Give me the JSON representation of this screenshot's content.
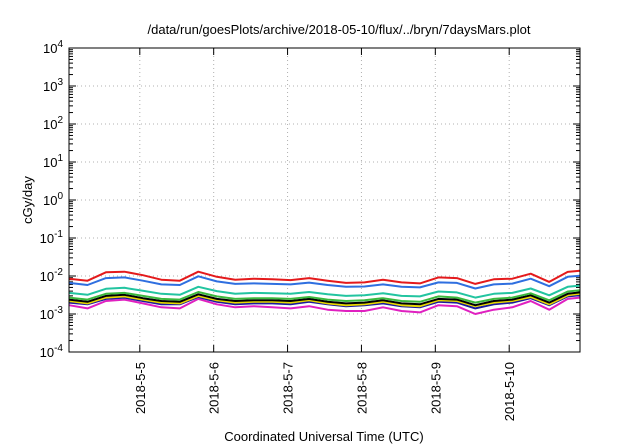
{
  "chart_data": {
    "type": "line",
    "title": "/data/run/goesPlots/archive/2018-05-10/flux/../bryn/7daysMars.plot",
    "xlabel": "Coordinated Universal Time (UTC)",
    "ylabel": "cGy/day",
    "yscale": "log",
    "ylim": [
      0.0001,
      10000
    ],
    "xlim": [
      "2018-05-04T01:00",
      "2018-05-10T23:00"
    ],
    "grid": true,
    "x_tick_labels": [
      "2018-5-5",
      "2018-5-6",
      "2018-5-7",
      "2018-5-8",
      "2018-5-9",
      "2018-5-10"
    ],
    "y_ticks": [
      {
        "base": "10",
        "exp": "4"
      },
      {
        "base": "10",
        "exp": "3"
      },
      {
        "base": "10",
        "exp": "2"
      },
      {
        "base": "10",
        "exp": "1"
      },
      {
        "base": "10",
        "exp": "0"
      },
      {
        "base": "10",
        "exp": "-1"
      },
      {
        "base": "10",
        "exp": "-2"
      },
      {
        "base": "10",
        "exp": "-3"
      },
      {
        "base": "10",
        "exp": "-4"
      }
    ],
    "x": [
      "2018-05-04T01:00",
      "2018-05-04T07:00",
      "2018-05-04T13:00",
      "2018-05-04T19:00",
      "2018-05-05T01:00",
      "2018-05-05T07:00",
      "2018-05-05T13:00",
      "2018-05-05T19:00",
      "2018-05-06T01:00",
      "2018-05-06T07:00",
      "2018-05-06T13:00",
      "2018-05-06T19:00",
      "2018-05-07T01:00",
      "2018-05-07T07:00",
      "2018-05-07T13:00",
      "2018-05-07T19:00",
      "2018-05-08T01:00",
      "2018-05-08T07:00",
      "2018-05-08T13:00",
      "2018-05-08T19:00",
      "2018-05-09T01:00",
      "2018-05-09T07:00",
      "2018-05-09T13:00",
      "2018-05-09T19:00",
      "2018-05-10T01:00",
      "2018-05-10T07:00",
      "2018-05-10T13:00",
      "2018-05-10T19:00",
      "2018-05-10T23:00"
    ],
    "series": [
      {
        "color": "#e41a1c",
        "values": [
          0.0085,
          0.0075,
          0.0125,
          0.013,
          0.0105,
          0.008,
          0.0075,
          0.013,
          0.0095,
          0.008,
          0.0085,
          0.0082,
          0.0078,
          0.0088,
          0.0075,
          0.0066,
          0.0068,
          0.008,
          0.0068,
          0.0064,
          0.0092,
          0.0088,
          0.0062,
          0.0082,
          0.0085,
          0.0115,
          0.007,
          0.0128,
          0.0138
        ]
      },
      {
        "color": "#2f6fe0",
        "values": [
          0.0066,
          0.0058,
          0.0088,
          0.0092,
          0.0075,
          0.006,
          0.0058,
          0.0098,
          0.0072,
          0.0062,
          0.0064,
          0.0062,
          0.006,
          0.0067,
          0.0058,
          0.0052,
          0.0053,
          0.006,
          0.0052,
          0.005,
          0.0068,
          0.0066,
          0.0047,
          0.006,
          0.0063,
          0.0085,
          0.0054,
          0.0095,
          0.0102
        ]
      },
      {
        "color": "#22c4a0",
        "values": [
          0.0036,
          0.0032,
          0.0046,
          0.0049,
          0.0041,
          0.0034,
          0.0032,
          0.0052,
          0.004,
          0.0034,
          0.0036,
          0.0035,
          0.0034,
          0.0038,
          0.0033,
          0.003,
          0.0031,
          0.0035,
          0.003,
          0.0029,
          0.0039,
          0.0037,
          0.0027,
          0.0034,
          0.0036,
          0.0047,
          0.0031,
          0.0052,
          0.0056
        ]
      },
      {
        "color": "#3cb83c",
        "values": [
          0.0027,
          0.0024,
          0.0034,
          0.0036,
          0.003,
          0.0025,
          0.0024,
          0.0038,
          0.0029,
          0.0025,
          0.0026,
          0.0026,
          0.0025,
          0.0028,
          0.0024,
          0.0022,
          0.0023,
          0.0026,
          0.0022,
          0.0021,
          0.0029,
          0.0027,
          0.002,
          0.0025,
          0.0027,
          0.0035,
          0.0023,
          0.0039,
          0.0042
        ]
      },
      {
        "color": "#000000",
        "values": [
          0.0024,
          0.0021,
          0.003,
          0.0032,
          0.0026,
          0.0022,
          0.0021,
          0.0033,
          0.0025,
          0.0022,
          0.0023,
          0.0023,
          0.0022,
          0.0025,
          0.0021,
          0.0019,
          0.002,
          0.0023,
          0.0019,
          0.0018,
          0.0025,
          0.0024,
          0.0017,
          0.0022,
          0.0024,
          0.0031,
          0.002,
          0.0034,
          0.0037
        ]
      },
      {
        "color": "#e8d800",
        "values": [
          0.0022,
          0.0019,
          0.0027,
          0.0029,
          0.0024,
          0.002,
          0.0019,
          0.003,
          0.0023,
          0.002,
          0.0021,
          0.0021,
          0.002,
          0.0023,
          0.0019,
          0.0017,
          0.0018,
          0.0021,
          0.0017,
          0.0016,
          0.0023,
          0.0022,
          0.0016,
          0.002,
          0.0022,
          0.0028,
          0.0018,
          0.0031,
          0.0034
        ]
      },
      {
        "color": "#1a1a9e",
        "values": [
          0.002,
          0.0018,
          0.0025,
          0.0027,
          0.0022,
          0.0018,
          0.0018,
          0.0028,
          0.0021,
          0.0018,
          0.0019,
          0.0019,
          0.0018,
          0.0021,
          0.0018,
          0.0016,
          0.0017,
          0.0019,
          0.0016,
          0.0015,
          0.0021,
          0.002,
          0.0014,
          0.0018,
          0.002,
          0.0026,
          0.0017,
          0.0029,
          0.0031
        ]
      },
      {
        "color": "#e020c0",
        "values": [
          0.0017,
          0.0014,
          0.0022,
          0.0024,
          0.0019,
          0.0015,
          0.0014,
          0.0025,
          0.0018,
          0.0015,
          0.0016,
          0.0015,
          0.0014,
          0.0016,
          0.0013,
          0.0012,
          0.0012,
          0.0015,
          0.0012,
          0.0011,
          0.0017,
          0.0016,
          0.001,
          0.0013,
          0.0015,
          0.0022,
          0.0013,
          0.0025,
          0.0027
        ]
      }
    ]
  }
}
